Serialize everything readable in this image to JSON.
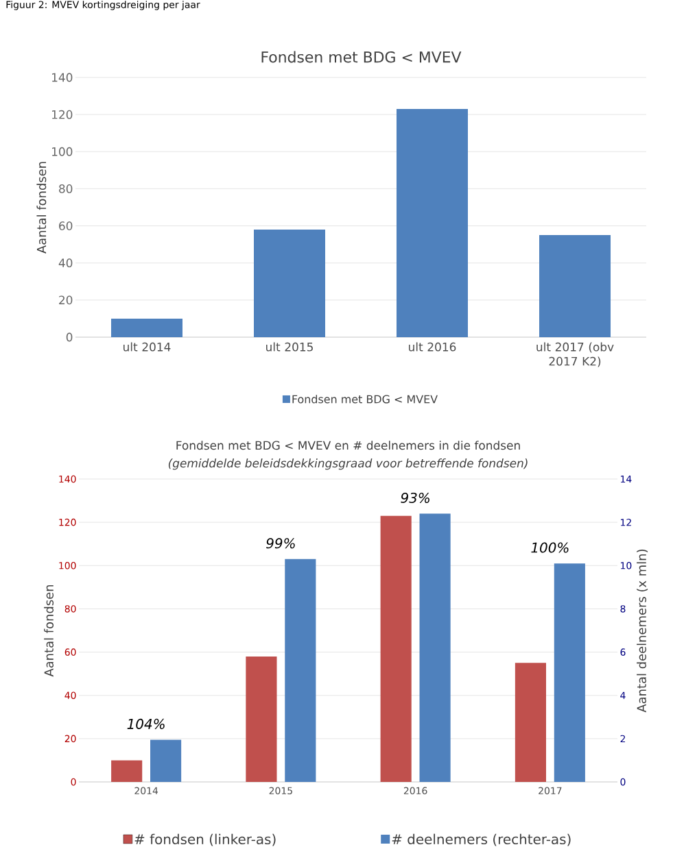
{
  "chart_data": [
    {
      "type": "bar",
      "title": "Fondsen met BDG < MVEV",
      "ylabel": "Aantal fondsen",
      "categories": [
        "ult 2014",
        "ult 2015",
        "ult 2016",
        "ult 2017 (obv 2017 K2)"
      ],
      "series": [
        {
          "name": "Fondsen met BDG < MVEV",
          "color": "#4f81bd",
          "values": [
            10,
            58,
            123,
            55
          ]
        }
      ],
      "ylim": [
        0,
        140
      ],
      "yticks": [
        0,
        20,
        40,
        60,
        80,
        100,
        120,
        140
      ],
      "grid": "y",
      "legend": "bottom",
      "annotations": [
        "Figuur 2: MVEV kortingsdreiging per jaar"
      ]
    },
    {
      "type": "bar",
      "title": "Fondsen met BDG < MVEV en # deelnemers in die fondsen",
      "subtitle": "(gemiddelde beleidsdekkingsgraad voor betreffende fondsen)",
      "ylabel": "Aantal fondsen",
      "y2label": "Aantal deelnemers (x mln)",
      "categories": [
        "2014",
        "2015",
        "2016",
        "2017"
      ],
      "series": [
        {
          "name": "# fondsen (linker-as)",
          "color": "#c0504d",
          "values": [
            10,
            58,
            123,
            55
          ],
          "axis": "y"
        },
        {
          "name": "# deelnemers (rechter-as)",
          "color": "#4f81bd",
          "values": [
            1.95,
            10.3,
            12.4,
            10.1
          ],
          "axis": "y2"
        }
      ],
      "ylim": [
        0,
        140
      ],
      "yticks": [
        0,
        20,
        40,
        60,
        80,
        100,
        120,
        140
      ],
      "y2lim": [
        0,
        14
      ],
      "y2ticks": [
        0,
        2,
        4,
        6,
        8,
        10,
        12,
        14
      ],
      "grid": "y",
      "legend": "bottom",
      "annotations": [
        "104%",
        "99%",
        "93%",
        "100%"
      ]
    }
  ]
}
